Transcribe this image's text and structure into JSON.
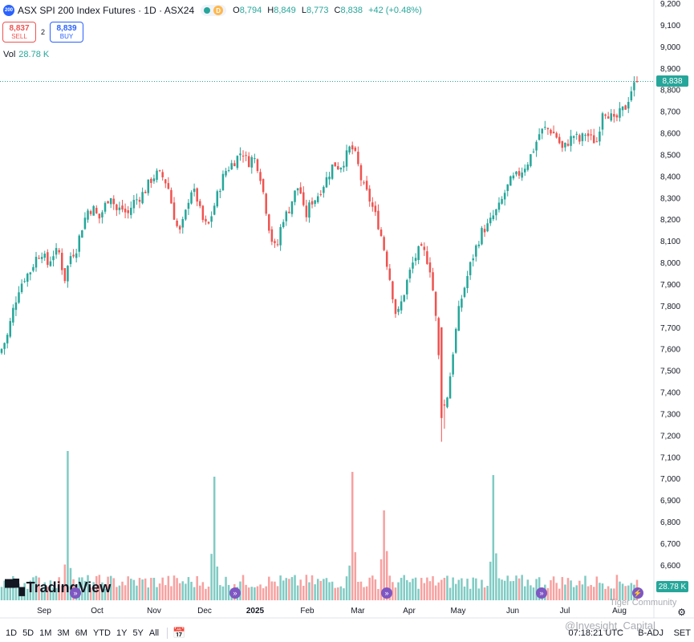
{
  "header": {
    "symbol_badge": "200",
    "title": "ASX SPI 200 Index Futures · 1D · ASX24",
    "status_letter": "D",
    "ohlc": {
      "o_label": "O",
      "o": "8,794",
      "h_label": "H",
      "h": "8,849",
      "l_label": "L",
      "l": "8,773",
      "c_label": "C",
      "c": "8,838",
      "change": "+42 (+0.48%)"
    }
  },
  "trade": {
    "sell_price": "8,837",
    "sell_label": "SELL",
    "spread": "2",
    "buy_price": "8,839",
    "buy_label": "BUY"
  },
  "volume": {
    "label": "Vol",
    "value": "28.78 K"
  },
  "price_tag": "8,838",
  "volume_tag": "28.78 K",
  "logo_text": "TradingView",
  "bottom": {
    "ranges": [
      "1D",
      "5D",
      "1M",
      "3M",
      "6M",
      "YTD",
      "1Y",
      "5Y",
      "All"
    ],
    "clock": "07:18:21 UTC",
    "badj": "B-ADJ",
    "set": "SET"
  },
  "watermarks": [
    "Tiger Community",
    "@Invesight_Capital"
  ],
  "colors": {
    "up": "#26a69a",
    "down": "#ef5350",
    "vol_up": "#80cbc4",
    "vol_down": "#f7a1a0",
    "event": "#7e57c2"
  },
  "icons": {
    "calendar": "calendar-icon",
    "settings": "gear-icon",
    "event": "double-chevron-icon",
    "flash": "lightning-icon"
  },
  "chart_data": {
    "type": "candlestick",
    "y_ticks": [
      7200,
      7300,
      7400,
      7500,
      7600,
      7700,
      7800,
      7900,
      8000,
      8100,
      8200,
      8300,
      8400,
      8500,
      8600,
      8700,
      8800,
      8900,
      9000,
      9100,
      9200
    ],
    "y_tick_labels": [
      "7,200",
      "7,300",
      "7,400",
      "7,500",
      "7,600",
      "7,700",
      "7,800",
      "7,900",
      "8,000",
      "8,100",
      "8,200",
      "8,300",
      "8,400",
      "8,500",
      "8,600",
      "8,700",
      "8,800",
      "8,900",
      "9,000",
      "9,100",
      "9,200"
    ],
    "right_axis_extra_labels": [
      "7,100",
      "7,000",
      "6,900",
      "6,800",
      "6,700",
      "6,600"
    ],
    "x_labels": [
      "Sep",
      "Oct",
      "Nov",
      "Dec",
      "2025",
      "Feb",
      "Mar",
      "Apr",
      "May",
      "Jun",
      "Jul",
      "Aug"
    ],
    "last_price": 8838,
    "close_path": [
      [
        0,
        7600
      ],
      [
        4,
        7660
      ],
      [
        8,
        7780
      ],
      [
        12,
        7880
      ],
      [
        16,
        7930
      ],
      [
        20,
        7960
      ],
      [
        24,
        8020
      ],
      [
        28,
        8050
      ],
      [
        32,
        7990
      ],
      [
        36,
        8040
      ],
      [
        40,
        8050
      ],
      [
        44,
        7920
      ],
      [
        48,
        8030
      ],
      [
        52,
        8060
      ],
      [
        56,
        8160
      ],
      [
        60,
        8240
      ],
      [
        64,
        8250
      ],
      [
        68,
        8200
      ],
      [
        72,
        8260
      ],
      [
        76,
        8320
      ],
      [
        80,
        8240
      ],
      [
        84,
        8250
      ],
      [
        88,
        8220
      ],
      [
        92,
        8280
      ],
      [
        96,
        8300
      ],
      [
        100,
        8330
      ],
      [
        104,
        8380
      ],
      [
        108,
        8410
      ],
      [
        112,
        8400
      ],
      [
        116,
        8360
      ],
      [
        120,
        8230
      ],
      [
        124,
        8130
      ],
      [
        128,
        8210
      ],
      [
        132,
        8340
      ],
      [
        136,
        8310
      ],
      [
        140,
        8200
      ],
      [
        144,
        8160
      ],
      [
        148,
        8250
      ],
      [
        152,
        8340
      ],
      [
        156,
        8420
      ],
      [
        160,
        8450
      ],
      [
        164,
        8480
      ],
      [
        168,
        8520
      ],
      [
        172,
        8460
      ],
      [
        176,
        8490
      ],
      [
        180,
        8430
      ],
      [
        184,
        8280
      ],
      [
        188,
        8120
      ],
      [
        192,
        8050
      ],
      [
        196,
        8200
      ],
      [
        200,
        8230
      ],
      [
        204,
        8310
      ],
      [
        208,
        8360
      ],
      [
        212,
        8200
      ],
      [
        216,
        8280
      ],
      [
        220,
        8300
      ],
      [
        224,
        8350
      ],
      [
        228,
        8400
      ],
      [
        232,
        8460
      ],
      [
        236,
        8440
      ],
      [
        240,
        8480
      ],
      [
        244,
        8540
      ],
      [
        248,
        8480
      ],
      [
        252,
        8360
      ],
      [
        256,
        8310
      ],
      [
        260,
        8240
      ],
      [
        264,
        8160
      ],
      [
        268,
        8040
      ],
      [
        272,
        7900
      ],
      [
        276,
        7740
      ],
      [
        280,
        7830
      ],
      [
        284,
        7930
      ],
      [
        288,
        8010
      ],
      [
        292,
        8060
      ],
      [
        296,
        8040
      ],
      [
        300,
        7960
      ],
      [
        304,
        7700
      ],
      [
        308,
        7300
      ],
      [
        312,
        7400
      ],
      [
        316,
        7620
      ],
      [
        320,
        7800
      ],
      [
        324,
        7900
      ],
      [
        328,
        8000
      ],
      [
        332,
        8080
      ],
      [
        336,
        8150
      ],
      [
        340,
        8170
      ],
      [
        344,
        8220
      ],
      [
        348,
        8260
      ],
      [
        352,
        8330
      ],
      [
        356,
        8380
      ],
      [
        360,
        8400
      ],
      [
        364,
        8430
      ],
      [
        368,
        8470
      ],
      [
        372,
        8530
      ],
      [
        376,
        8600
      ],
      [
        380,
        8620
      ],
      [
        384,
        8610
      ],
      [
        388,
        8580
      ],
      [
        392,
        8520
      ],
      [
        396,
        8560
      ],
      [
        400,
        8590
      ],
      [
        404,
        8560
      ],
      [
        408,
        8600
      ],
      [
        412,
        8570
      ],
      [
        416,
        8560
      ],
      [
        420,
        8710
      ],
      [
        424,
        8690
      ],
      [
        428,
        8650
      ],
      [
        432,
        8690
      ],
      [
        436,
        8720
      ],
      [
        440,
        8800
      ],
      [
        444,
        8838
      ]
    ],
    "volume_spikes": [
      {
        "pos": 0.105,
        "value": "7,100 scale"
      },
      {
        "pos": 0.335,
        "value": "6,950 scale"
      },
      {
        "pos": 0.553,
        "value": "7,000 scale"
      },
      {
        "pos": 0.602,
        "value": "6,750 scale"
      },
      {
        "pos": 0.776,
        "value": "6,930 scale"
      }
    ]
  }
}
